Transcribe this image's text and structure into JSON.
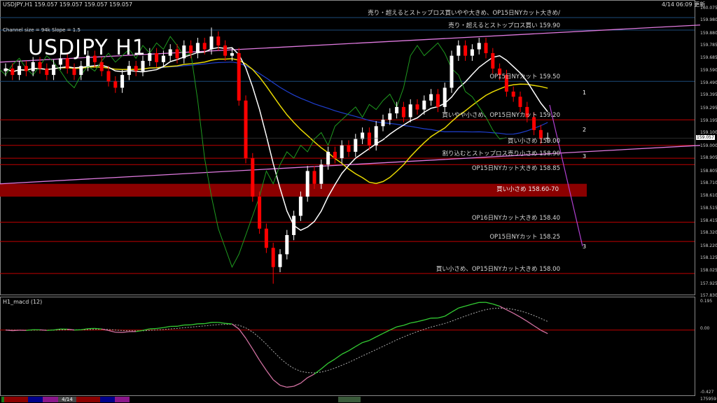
{
  "header": {
    "symbol_line": "USDJPY,H1  159.057 159.057 159.057 159.057",
    "channel_info": "Channel size = 94k Slope = 1.5",
    "big_title": "USDJPY H1",
    "updated": "4/14 06:09 更新"
  },
  "colors": {
    "background": "#000000",
    "bull": "#ffffff",
    "bear": "#ff0000",
    "level_line": "#c00000",
    "blue_line": "#1c4a7a",
    "channel": "#e07ae0",
    "band": "#8b0000",
    "macd_up": "#33cc33",
    "macd_down": "#d070a0"
  },
  "levels": [
    {
      "price": 159.998,
      "label": "売り・超えるとストップロス買いやや大きめ、OP15日NYカット大きめ/",
      "color": "#1c4a7a"
    },
    {
      "price": 159.9,
      "label": "売り・超えるとストップロス買い 159.90",
      "color": "#1c4a7a"
    },
    {
      "price": 159.5,
      "label": "OP15日NYカット 159.50",
      "color": "#1c4a7a"
    },
    {
      "price": 159.2,
      "label": "買いやや小さめ、OP15日NYカット 159.20",
      "color": "#c00000"
    },
    {
      "price": 159.0,
      "label": "買い小さめ 159.00",
      "color": "#c00000"
    },
    {
      "price": 158.9,
      "label": "割り込むとストップロス売り小さめ 158.90",
      "color": "#c00000"
    },
    {
      "price": 158.85,
      "label": "OP15日NYカット大きめ 158.85",
      "color": "#c00000"
    },
    {
      "price": 158.4,
      "label": "OP16日NYカット大きめ 158.40",
      "color": "#c00000"
    },
    {
      "price": 158.25,
      "label": "OP15日NYカット 158.25",
      "color": "#c00000"
    },
    {
      "price": 158.0,
      "label": "買い小さめ、OP15日NYカット大きめ 158.00",
      "color": "#c00000"
    }
  ],
  "band": {
    "from": 158.6,
    "to": 158.7,
    "label": "買い小さめ 158.60-70"
  },
  "wave_labels": [
    "1",
    "2",
    "3",
    "3"
  ],
  "chart_data": {
    "type": "candlestick",
    "title": "USDJPY H1",
    "timeframe": "H1",
    "ylim": [
      157.83,
      160.075
    ],
    "y_ticks": [
      "160.075",
      "159.980",
      "159.880",
      "159.785",
      "159.685",
      "159.590",
      "159.490",
      "159.395",
      "159.295",
      "159.195",
      "159.100",
      "159.000",
      "158.905",
      "158.805",
      "158.710",
      "158.610",
      "158.515",
      "158.415",
      "158.320",
      "158.220",
      "158.125",
      "158.025",
      "157.925",
      "157.830"
    ],
    "current_price": "159.057",
    "channel_upper": [
      159.65,
      159.94
    ],
    "channel_lower": [
      158.7,
      159.0
    ],
    "ohlc": [
      [
        159.58,
        159.64,
        159.54,
        159.6
      ],
      [
        159.6,
        159.64,
        159.51,
        159.55
      ],
      [
        159.55,
        159.66,
        159.51,
        159.62
      ],
      [
        159.62,
        159.66,
        159.54,
        159.58
      ],
      [
        159.58,
        159.69,
        159.54,
        159.65
      ],
      [
        159.65,
        159.69,
        159.56,
        159.6
      ],
      [
        159.6,
        159.64,
        159.51,
        159.55
      ],
      [
        159.55,
        159.67,
        159.51,
        159.63
      ],
      [
        159.63,
        159.72,
        159.59,
        159.68
      ],
      [
        159.68,
        159.72,
        159.56,
        159.6
      ],
      [
        159.6,
        159.64,
        159.51,
        159.55
      ],
      [
        159.55,
        159.66,
        159.51,
        159.62
      ],
      [
        159.62,
        159.74,
        159.58,
        159.7
      ],
      [
        159.7,
        159.74,
        159.61,
        159.65
      ],
      [
        159.65,
        159.69,
        159.54,
        159.58
      ],
      [
        159.58,
        159.62,
        159.46,
        159.5
      ],
      [
        159.5,
        159.54,
        159.41,
        159.45
      ],
      [
        159.45,
        159.59,
        159.41,
        159.55
      ],
      [
        159.55,
        159.66,
        159.51,
        159.62
      ],
      [
        159.62,
        159.66,
        159.54,
        159.58
      ],
      [
        159.58,
        159.7,
        159.54,
        159.66
      ],
      [
        159.66,
        159.76,
        159.62,
        159.72
      ],
      [
        159.72,
        159.76,
        159.61,
        159.65
      ],
      [
        159.65,
        159.74,
        159.61,
        159.7
      ],
      [
        159.7,
        159.79,
        159.66,
        159.75
      ],
      [
        159.75,
        159.79,
        159.64,
        159.68
      ],
      [
        159.68,
        159.82,
        159.64,
        159.78
      ],
      [
        159.78,
        159.82,
        159.68,
        159.72
      ],
      [
        159.72,
        159.84,
        159.68,
        159.8
      ],
      [
        159.8,
        159.84,
        159.71,
        159.75
      ],
      [
        159.75,
        159.92,
        159.71,
        159.85
      ],
      [
        159.85,
        159.89,
        159.74,
        159.78
      ],
      [
        159.78,
        159.82,
        159.66,
        159.7
      ],
      [
        159.7,
        159.76,
        159.66,
        159.72
      ],
      [
        159.72,
        159.76,
        159.31,
        159.35
      ],
      [
        159.35,
        159.39,
        158.86,
        158.9
      ],
      [
        158.9,
        158.94,
        158.56,
        158.6
      ],
      [
        158.6,
        158.64,
        158.31,
        158.35
      ],
      [
        158.35,
        158.39,
        158.16,
        158.2
      ],
      [
        158.2,
        158.24,
        157.92,
        158.05
      ],
      [
        158.05,
        158.19,
        158.01,
        158.15
      ],
      [
        158.15,
        158.34,
        158.11,
        158.3
      ],
      [
        158.3,
        158.49,
        158.26,
        158.45
      ],
      [
        158.45,
        158.64,
        158.41,
        158.6
      ],
      [
        158.6,
        158.84,
        158.56,
        158.8
      ],
      [
        158.8,
        158.84,
        158.66,
        158.7
      ],
      [
        158.7,
        158.89,
        158.66,
        158.85
      ],
      [
        158.85,
        158.99,
        158.81,
        158.95
      ],
      [
        158.95,
        158.99,
        158.86,
        158.9
      ],
      [
        158.9,
        159.04,
        158.86,
        159.0
      ],
      [
        159.0,
        159.04,
        158.91,
        158.95
      ],
      [
        158.95,
        159.09,
        158.91,
        159.05
      ],
      [
        159.05,
        159.14,
        159.01,
        159.1
      ],
      [
        159.1,
        159.14,
        158.96,
        159.0
      ],
      [
        159.0,
        159.19,
        158.96,
        159.15
      ],
      [
        159.15,
        159.24,
        159.11,
        159.2
      ],
      [
        159.2,
        159.29,
        159.16,
        159.25
      ],
      [
        159.25,
        159.34,
        159.21,
        159.3
      ],
      [
        159.3,
        159.34,
        159.18,
        159.22
      ],
      [
        159.22,
        159.36,
        159.18,
        159.32
      ],
      [
        159.32,
        159.36,
        159.24,
        159.28
      ],
      [
        159.28,
        159.39,
        159.24,
        159.35
      ],
      [
        159.35,
        159.44,
        159.31,
        159.4
      ],
      [
        159.4,
        159.44,
        159.26,
        159.3
      ],
      [
        159.3,
        159.49,
        159.26,
        159.45
      ],
      [
        159.45,
        159.74,
        159.41,
        159.7
      ],
      [
        159.7,
        159.82,
        159.66,
        159.78
      ],
      [
        159.78,
        159.82,
        159.66,
        159.7
      ],
      [
        159.7,
        159.79,
        159.66,
        159.75
      ],
      [
        159.75,
        159.84,
        159.71,
        159.8
      ],
      [
        159.8,
        159.84,
        159.68,
        159.72
      ],
      [
        159.72,
        159.76,
        159.56,
        159.6
      ],
      [
        159.6,
        159.64,
        159.51,
        159.55
      ],
      [
        159.55,
        159.59,
        159.38,
        159.42
      ],
      [
        159.42,
        159.46,
        159.34,
        159.38
      ],
      [
        159.38,
        159.42,
        159.26,
        159.3
      ],
      [
        159.3,
        159.34,
        159.18,
        159.22
      ],
      [
        159.22,
        159.26,
        159.08,
        159.12
      ],
      [
        159.12,
        159.16,
        159.01,
        159.05
      ],
      [
        159.05,
        159.1,
        159.02,
        159.06
      ]
    ],
    "macd": {
      "label": "H1_macd (12)",
      "y_ticks": [
        "0.195",
        "0.00",
        "-0.427"
      ],
      "ylim": [
        -0.427,
        0.195
      ]
    }
  },
  "footer": {
    "date_tab": "4/14",
    "counter": "175959"
  }
}
